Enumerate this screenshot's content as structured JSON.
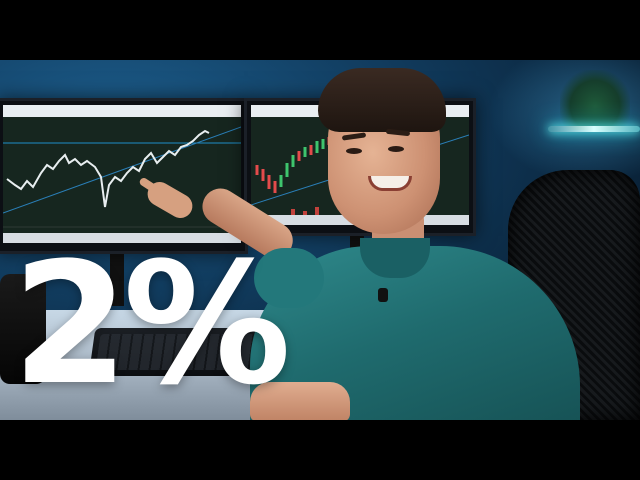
{
  "overlay": {
    "text": "2%"
  },
  "colors": {
    "letterbox": "#000000",
    "wall": "#123f63",
    "shirt": "#1f6b6e",
    "chart_background": "#16261f",
    "led_glow": "#66ffff",
    "overlay_text": "#ffffff"
  },
  "scene": {
    "monitors": [
      {
        "name": "left-monitor",
        "content": "price-chart"
      },
      {
        "name": "right-monitor",
        "content": "candlestick-chart"
      }
    ],
    "objects": [
      "keyboard",
      "speaker",
      "office-chair",
      "led-strip",
      "plant",
      "lapel-microphone"
    ]
  }
}
